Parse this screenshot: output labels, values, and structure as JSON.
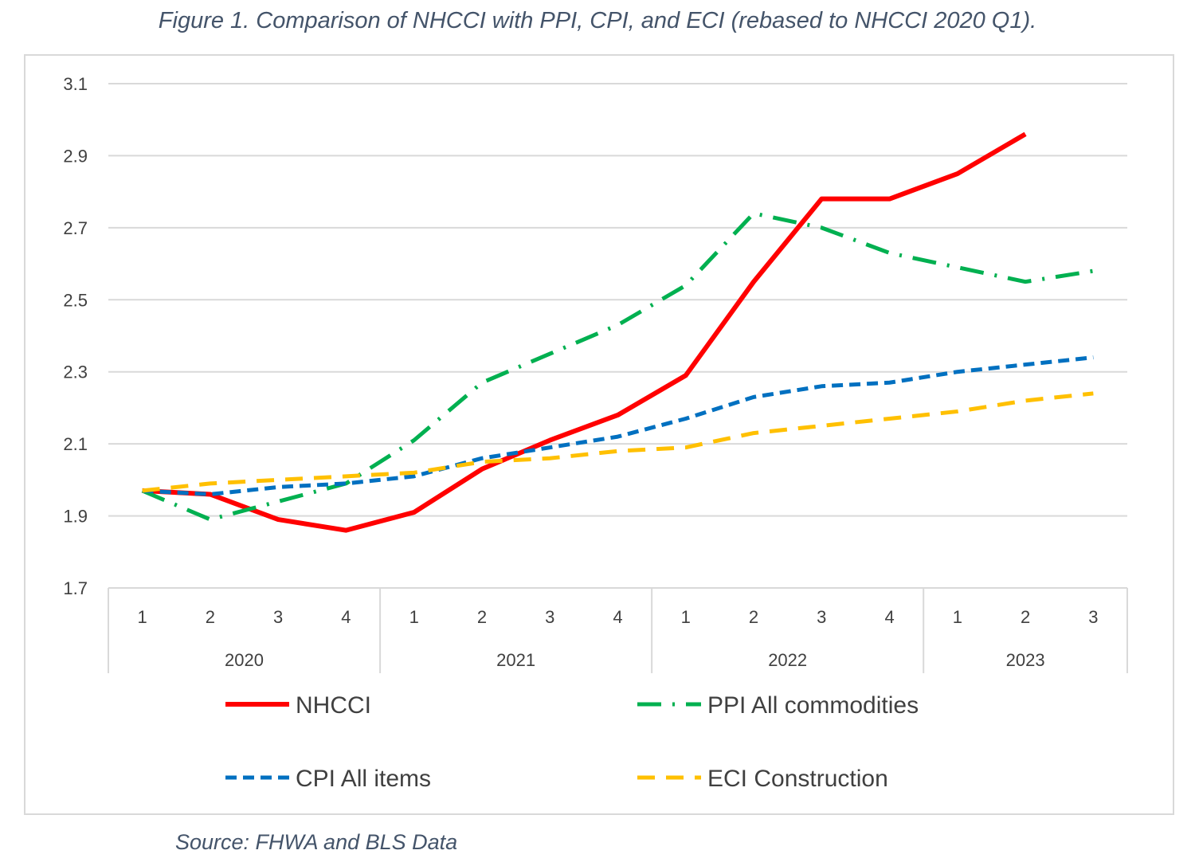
{
  "title": "Figure 1. Comparison of NHCCI with PPI, CPI, and ECI (rebased to NHCCI 2020 Q1).",
  "source": "Source: FHWA and BLS Data",
  "chart_data": {
    "type": "line",
    "title": "Figure 1. Comparison of NHCCI with PPI, CPI, and ECI (rebased to NHCCI 2020 Q1).",
    "ylim": [
      1.7,
      3.1
    ],
    "yticks": [
      "1.7",
      "1.9",
      "2.1",
      "2.3",
      "2.5",
      "2.7",
      "2.9",
      "3.1"
    ],
    "grid": true,
    "legend": "bottom",
    "categories": [
      "1",
      "2",
      "3",
      "4",
      "1",
      "2",
      "3",
      "4",
      "1",
      "2",
      "3",
      "4",
      "1",
      "2",
      "3"
    ],
    "years": [
      {
        "label": "2020",
        "count": 4
      },
      {
        "label": "2021",
        "count": 4
      },
      {
        "label": "2022",
        "count": 4
      },
      {
        "label": "2023",
        "count": 3
      }
    ],
    "series": [
      {
        "name": "NHCCI",
        "color": "#ff0000",
        "style": "solid",
        "values": [
          1.97,
          1.96,
          1.89,
          1.86,
          1.91,
          2.03,
          2.11,
          2.18,
          2.29,
          2.55,
          2.78,
          2.78,
          2.85,
          2.96,
          null
        ]
      },
      {
        "name": "PPI All commodities",
        "color": "#00b050",
        "style": "long-dash-dot",
        "values": [
          1.97,
          1.89,
          1.94,
          1.99,
          2.11,
          2.27,
          2.35,
          2.43,
          2.54,
          2.74,
          2.7,
          2.63,
          2.59,
          2.55,
          2.58
        ]
      },
      {
        "name": "CPI All items",
        "color": "#0070c0",
        "style": "dash",
        "values": [
          1.97,
          1.96,
          1.98,
          1.99,
          2.01,
          2.06,
          2.09,
          2.12,
          2.17,
          2.23,
          2.26,
          2.27,
          2.3,
          2.32,
          2.34
        ]
      },
      {
        "name": "ECI Construction",
        "color": "#ffc000",
        "style": "long-dash",
        "values": [
          1.97,
          1.99,
          2.0,
          2.01,
          2.02,
          2.05,
          2.06,
          2.08,
          2.09,
          2.13,
          2.15,
          2.17,
          2.19,
          2.22,
          2.24
        ]
      }
    ]
  }
}
